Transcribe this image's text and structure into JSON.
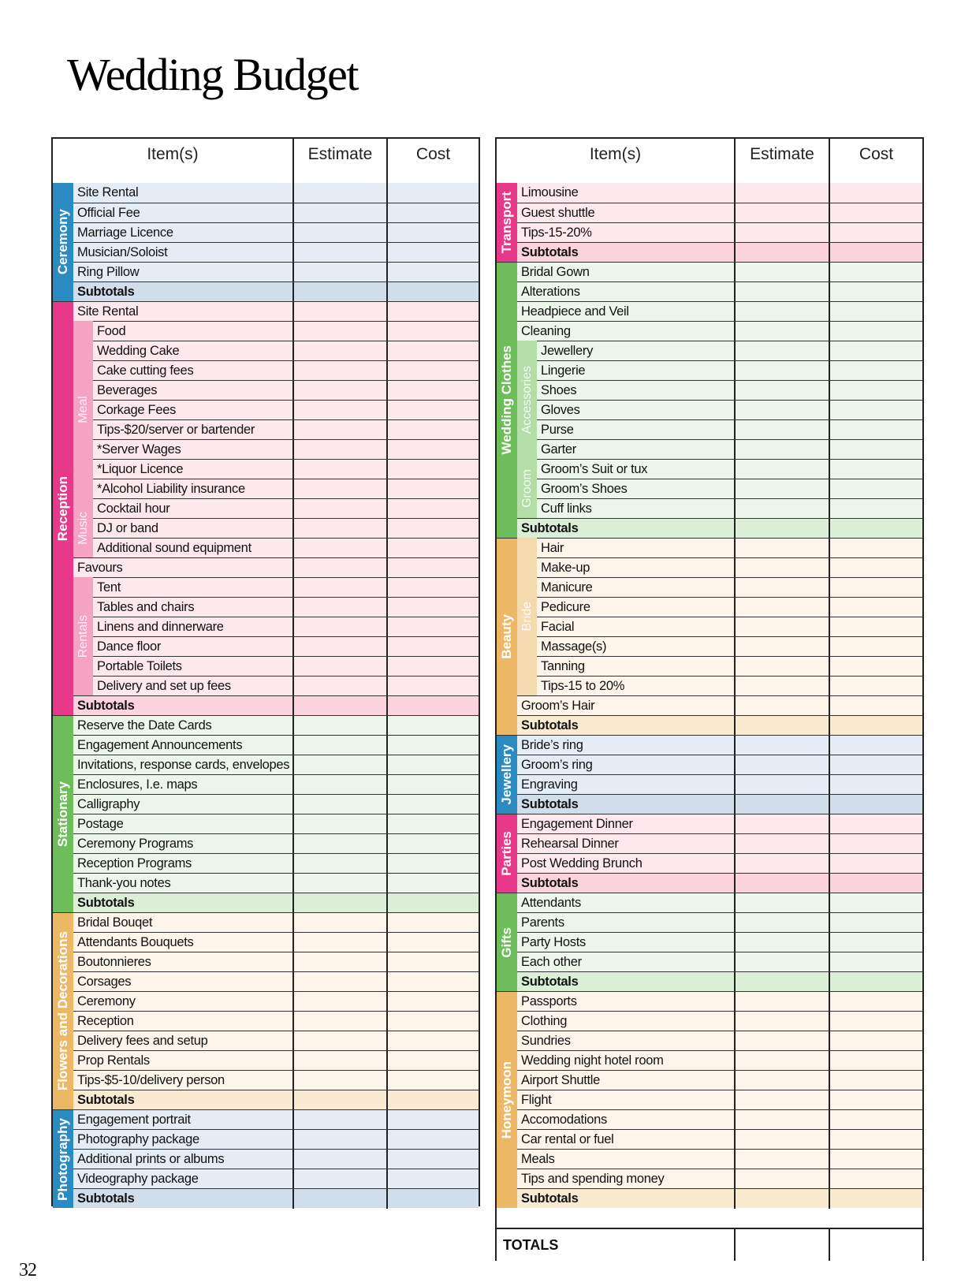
{
  "page": {
    "title": "Wedding Budget",
    "page_number": "32"
  },
  "headers": {
    "item": "Item(s)",
    "estimate": "Estimate",
    "cost": "Cost"
  },
  "totals_label": "TOTALS",
  "colors": {
    "blue": {
      "bar": "#2A8AC2",
      "row": "#E4ECF5",
      "subtotal": "#D0DEEB"
    },
    "pink": {
      "bar": "#E8388A",
      "sub": "#F4A3C3",
      "row": "#FDE8EE",
      "subtotal": "#FAD3DF"
    },
    "green": {
      "bar": "#6DBE5B",
      "sub": "#B5DDA8",
      "row": "#EDF6EB",
      "subtotal": "#DAEFD6"
    },
    "orange": {
      "bar": "#EDB866",
      "sub": "#F6DAAF",
      "row": "#FDF5EA",
      "subtotal": "#FBEAD2"
    }
  },
  "left_table": {
    "categories": [
      {
        "name": "Ceremony",
        "color": "blue",
        "rows": [
          {
            "label": "Site Rental"
          },
          {
            "label": "Official Fee"
          },
          {
            "label": "Marriage Licence"
          },
          {
            "label": "Musician/Soloist"
          },
          {
            "label": "Ring Pillow"
          },
          {
            "label": "Subtotals",
            "subtotal": true
          }
        ]
      },
      {
        "name": "Reception",
        "color": "pink",
        "rows": [
          {
            "label": "Site Rental"
          },
          {
            "label": "Food",
            "group": "Meal"
          },
          {
            "label": "Wedding Cake",
            "group": "Meal"
          },
          {
            "label": "Cake cutting fees",
            "group": "Meal"
          },
          {
            "label": "Beverages",
            "group": "Meal"
          },
          {
            "label": "Corkage Fees",
            "group": "Meal"
          },
          {
            "label": "Tips-$20/server or bartender",
            "group": "Meal"
          },
          {
            "label": "*Server Wages",
            "group": "Meal"
          },
          {
            "label": "*Liquor Licence",
            "group": "Meal"
          },
          {
            "label": "*Alcohol Liability insurance",
            "group": "Meal"
          },
          {
            "label": "Cocktail hour",
            "group": "Music"
          },
          {
            "label": "DJ or band",
            "group": "Music"
          },
          {
            "label": "Additional sound equipment",
            "group": "Music"
          },
          {
            "label": "Favours"
          },
          {
            "label": "Tent",
            "group": "Rentals"
          },
          {
            "label": "Tables and chairs",
            "group": "Rentals"
          },
          {
            "label": "Linens and dinnerware",
            "group": "Rentals"
          },
          {
            "label": "Dance floor",
            "group": "Rentals"
          },
          {
            "label": "Portable Toilets",
            "group": "Rentals"
          },
          {
            "label": "Delivery and set up fees",
            "group": "Rentals"
          },
          {
            "label": "Subtotals",
            "subtotal": true
          }
        ]
      },
      {
        "name": "Stationary",
        "color": "green",
        "rows": [
          {
            "label": "Reserve the Date Cards"
          },
          {
            "label": "Engagement Announcements"
          },
          {
            "label": "Invitations, response cards, envelopes"
          },
          {
            "label": "Enclosures, I.e. maps"
          },
          {
            "label": "Calligraphy"
          },
          {
            "label": "Postage"
          },
          {
            "label": "Ceremony Programs"
          },
          {
            "label": "Reception Programs"
          },
          {
            "label": "Thank-you notes"
          },
          {
            "label": "Subtotals",
            "subtotal": true
          }
        ]
      },
      {
        "name": "Flowers and Decorations",
        "color": "orange",
        "rows": [
          {
            "label": "Bridal Bouqet"
          },
          {
            "label": "Attendants Bouquets"
          },
          {
            "label": "Boutonnieres"
          },
          {
            "label": "Corsages"
          },
          {
            "label": "Ceremony"
          },
          {
            "label": "Reception"
          },
          {
            "label": "Delivery fees and setup"
          },
          {
            "label": "Prop Rentals"
          },
          {
            "label": "Tips-$5-10/delivery person"
          },
          {
            "label": "Subtotals",
            "subtotal": true
          }
        ]
      },
      {
        "name": "Photography",
        "color": "blue",
        "rows": [
          {
            "label": "Engagement portrait"
          },
          {
            "label": "Photography package"
          },
          {
            "label": "Additional prints or albums"
          },
          {
            "label": "Videography package"
          },
          {
            "label": "Subtotals",
            "subtotal": true
          }
        ]
      }
    ]
  },
  "right_table": {
    "categories": [
      {
        "name": "Transport",
        "color": "pink",
        "rows": [
          {
            "label": "Limousine"
          },
          {
            "label": "Guest shuttle"
          },
          {
            "label": "Tips-15-20%"
          },
          {
            "label": "Subtotals",
            "subtotal": true
          }
        ]
      },
      {
        "name": "Wedding Clothes",
        "color": "green",
        "rows": [
          {
            "label": "Bridal Gown"
          },
          {
            "label": "Alterations"
          },
          {
            "label": "Headpiece and Veil"
          },
          {
            "label": "Cleaning"
          },
          {
            "label": "Jewellery",
            "group": "Accessories"
          },
          {
            "label": "Lingerie",
            "group": "Accessories"
          },
          {
            "label": "Shoes",
            "group": "Accessories"
          },
          {
            "label": "Gloves",
            "group": "Accessories"
          },
          {
            "label": "Purse",
            "group": "Accessories"
          },
          {
            "label": "Garter",
            "group": "Accessories"
          },
          {
            "label": "Groom’s Suit or tux",
            "group": "Groom"
          },
          {
            "label": "Groom’s Shoes",
            "group": "Groom"
          },
          {
            "label": "Cuff links",
            "group": "Groom"
          },
          {
            "label": "Subtotals",
            "subtotal": true
          }
        ]
      },
      {
        "name": "Beauty",
        "color": "orange",
        "rows": [
          {
            "label": "Hair",
            "group": "Bride"
          },
          {
            "label": "Make-up",
            "group": "Bride"
          },
          {
            "label": "Manicure",
            "group": "Bride"
          },
          {
            "label": "Pedicure",
            "group": "Bride"
          },
          {
            "label": "Facial",
            "group": "Bride"
          },
          {
            "label": "Massage(s)",
            "group": "Bride"
          },
          {
            "label": "Tanning",
            "group": "Bride"
          },
          {
            "label": "Tips-15 to 20%",
            "group": "Bride"
          },
          {
            "label": "Groom’s Hair"
          },
          {
            "label": "Subtotals",
            "subtotal": true
          }
        ]
      },
      {
        "name": "Jewellery",
        "color": "blue",
        "rows": [
          {
            "label": "Bride’s ring"
          },
          {
            "label": "Groom’s ring"
          },
          {
            "label": "Engraving"
          },
          {
            "label": "Subtotals",
            "subtotal": true
          }
        ]
      },
      {
        "name": "Parties",
        "color": "pink",
        "rows": [
          {
            "label": "Engagement Dinner"
          },
          {
            "label": "Rehearsal Dinner"
          },
          {
            "label": "Post Wedding Brunch"
          },
          {
            "label": "Subtotals",
            "subtotal": true
          }
        ]
      },
      {
        "name": "Gifts",
        "color": "green",
        "rows": [
          {
            "label": "Attendants"
          },
          {
            "label": "Parents"
          },
          {
            "label": "Party Hosts"
          },
          {
            "label": "Each other"
          },
          {
            "label": "Subtotals",
            "subtotal": true
          }
        ]
      },
      {
        "name": "Honeymoon",
        "color": "orange",
        "rows": [
          {
            "label": "Passports"
          },
          {
            "label": "Clothing"
          },
          {
            "label": "Sundries"
          },
          {
            "label": "Wedding night hotel room"
          },
          {
            "label": "Airport Shuttle"
          },
          {
            "label": "Flight"
          },
          {
            "label": "Accomodations"
          },
          {
            "label": "Car rental or fuel"
          },
          {
            "label": "Meals"
          },
          {
            "label": "Tips and spending money"
          },
          {
            "label": "Subtotals",
            "subtotal": true
          }
        ]
      }
    ]
  }
}
